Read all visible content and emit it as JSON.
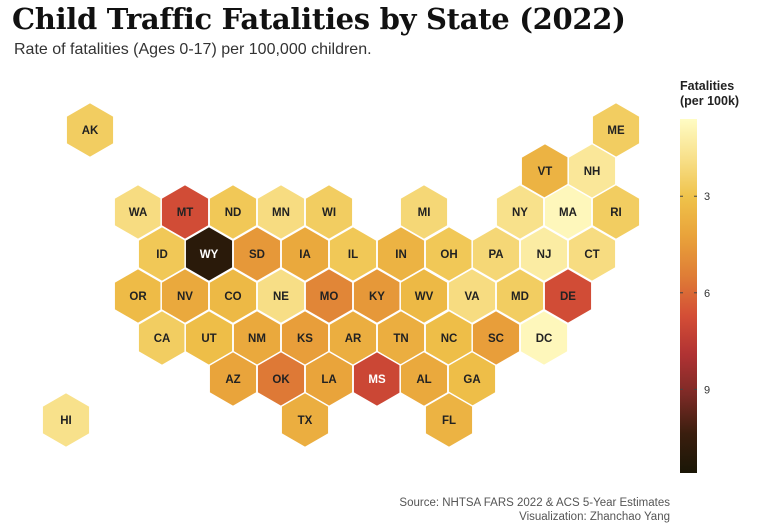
{
  "chart_data": {
    "type": "hexmap",
    "title": "Child Traffic Fatalities by State (2022)",
    "subtitle": "Rate of fatalities (Ages 0-17) per 100,000 children.",
    "legend": {
      "title_line1": "Fatalities",
      "title_line2": "(per 100k)",
      "min": 0.6,
      "max": 11.6,
      "ticks": [
        3,
        6,
        9
      ],
      "tick_labels": [
        "3",
        "6",
        "9"
      ],
      "placement": "right"
    },
    "states": [
      {
        "abbr": "AK",
        "value": 2.6
      },
      {
        "abbr": "ME",
        "value": 2.6
      },
      {
        "abbr": "VT",
        "value": 3.6
      },
      {
        "abbr": "NH",
        "value": 1.5
      },
      {
        "abbr": "WA",
        "value": 2.0
      },
      {
        "abbr": "MT",
        "value": 6.8
      },
      {
        "abbr": "ND",
        "value": 2.8
      },
      {
        "abbr": "MN",
        "value": 2.0
      },
      {
        "abbr": "WI",
        "value": 2.6
      },
      {
        "abbr": "MI",
        "value": 2.2
      },
      {
        "abbr": "NY",
        "value": 1.8
      },
      {
        "abbr": "MA",
        "value": 0.8
      },
      {
        "abbr": "RI",
        "value": 2.6
      },
      {
        "abbr": "ID",
        "value": 2.8
      },
      {
        "abbr": "WY",
        "value": 11.0
      },
      {
        "abbr": "SD",
        "value": 4.6
      },
      {
        "abbr": "IA",
        "value": 4.0
      },
      {
        "abbr": "IL",
        "value": 2.8
      },
      {
        "abbr": "IN",
        "value": 3.6
      },
      {
        "abbr": "OH",
        "value": 2.8
      },
      {
        "abbr": "PA",
        "value": 2.2
      },
      {
        "abbr": "NJ",
        "value": 1.3
      },
      {
        "abbr": "CT",
        "value": 2.0
      },
      {
        "abbr": "OR",
        "value": 3.3
      },
      {
        "abbr": "NV",
        "value": 4.0
      },
      {
        "abbr": "CO",
        "value": 3.4
      },
      {
        "abbr": "NE",
        "value": 1.9
      },
      {
        "abbr": "MO",
        "value": 5.2
      },
      {
        "abbr": "KY",
        "value": 4.6
      },
      {
        "abbr": "WV",
        "value": 3.4
      },
      {
        "abbr": "VA",
        "value": 2.0
      },
      {
        "abbr": "MD",
        "value": 2.6
      },
      {
        "abbr": "DE",
        "value": 6.8
      },
      {
        "abbr": "CA",
        "value": 2.6
      },
      {
        "abbr": "UT",
        "value": 3.2
      },
      {
        "abbr": "NM",
        "value": 4.0
      },
      {
        "abbr": "KS",
        "value": 4.4
      },
      {
        "abbr": "AR",
        "value": 3.8
      },
      {
        "abbr": "TN",
        "value": 3.8
      },
      {
        "abbr": "NC",
        "value": 3.2
      },
      {
        "abbr": "SC",
        "value": 4.4
      },
      {
        "abbr": "DC",
        "value": 0.8
      },
      {
        "abbr": "AZ",
        "value": 4.2
      },
      {
        "abbr": "OK",
        "value": 5.6
      },
      {
        "abbr": "LA",
        "value": 4.2
      },
      {
        "abbr": "MS",
        "value": 7.0
      },
      {
        "abbr": "AL",
        "value": 4.0
      },
      {
        "abbr": "GA",
        "value": 3.2
      },
      {
        "abbr": "TX",
        "value": 3.8
      },
      {
        "abbr": "FL",
        "value": 3.6
      },
      {
        "abbr": "HI",
        "value": 1.8
      }
    ]
  },
  "caption": {
    "line1": "Source: NHTSA FARS 2022 & ACS 5-Year Estimates",
    "line2": "Visualization: Zhanchao Yang"
  },
  "colors": {
    "scale": [
      "#fffcc4",
      "#f8e08a",
      "#efc24a",
      "#e9a23a",
      "#df7d36",
      "#d44e36",
      "#b03233",
      "#7c2a26",
      "#3a1e0e",
      "#1a1606"
    ],
    "hex_stroke": "#ffffff",
    "label_dark": "#222222",
    "label_light": "#ffffff"
  }
}
